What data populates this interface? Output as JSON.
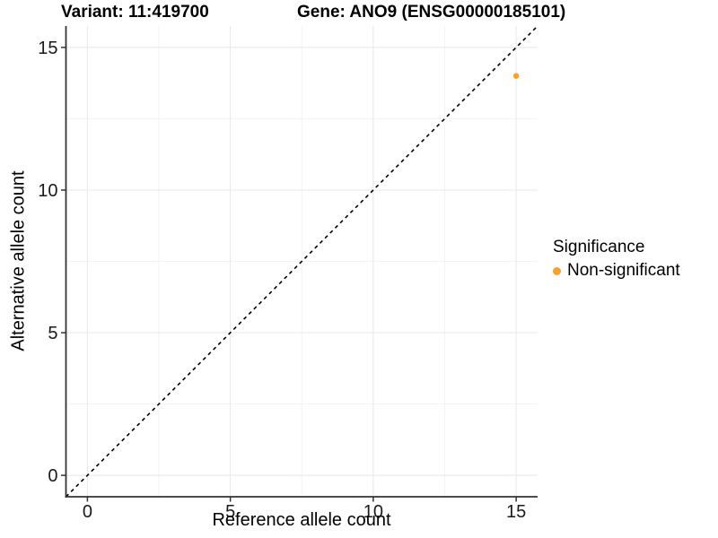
{
  "titles": {
    "variant": "Variant: 11:419700",
    "gene": "Gene: ANO9 (ENSG00000185101)"
  },
  "axes": {
    "x_label": "Reference allele count",
    "y_label": "Alternative allele count"
  },
  "legend": {
    "title": "Significance",
    "entries": [
      {
        "label": "Non-significant",
        "color": "#F8A028"
      }
    ]
  },
  "colors": {
    "point": "#F8A028",
    "grid_major": "#E8E8E8",
    "grid_minor": "#F3F3F3",
    "axis_line": "#333333",
    "tick_text": "#1a1a1a",
    "reference_line": "#000000"
  },
  "chart_data": {
    "type": "scatter",
    "title": "Variant: 11:419700   Gene: ANO9 (ENSG00000185101)",
    "xlabel": "Reference allele count",
    "ylabel": "Alternative allele count",
    "xlim": [
      -0.75,
      15.75
    ],
    "ylim": [
      -0.75,
      15.75
    ],
    "x_ticks": [
      0,
      5,
      10,
      15
    ],
    "y_ticks": [
      0,
      5,
      10,
      15
    ],
    "x_minor_ticks": [
      2.5,
      7.5,
      12.5
    ],
    "y_minor_ticks": [
      2.5,
      7.5,
      12.5
    ],
    "grid": true,
    "legend_position": "right",
    "series": [
      {
        "name": "Non-significant",
        "color": "#F8A028",
        "points": [
          {
            "x": 15,
            "y": 14
          }
        ]
      }
    ],
    "reference_line": {
      "type": "identity y=x",
      "style": "dashed",
      "from": [
        -0.75,
        -0.75
      ],
      "to": [
        15.75,
        15.75
      ]
    }
  }
}
